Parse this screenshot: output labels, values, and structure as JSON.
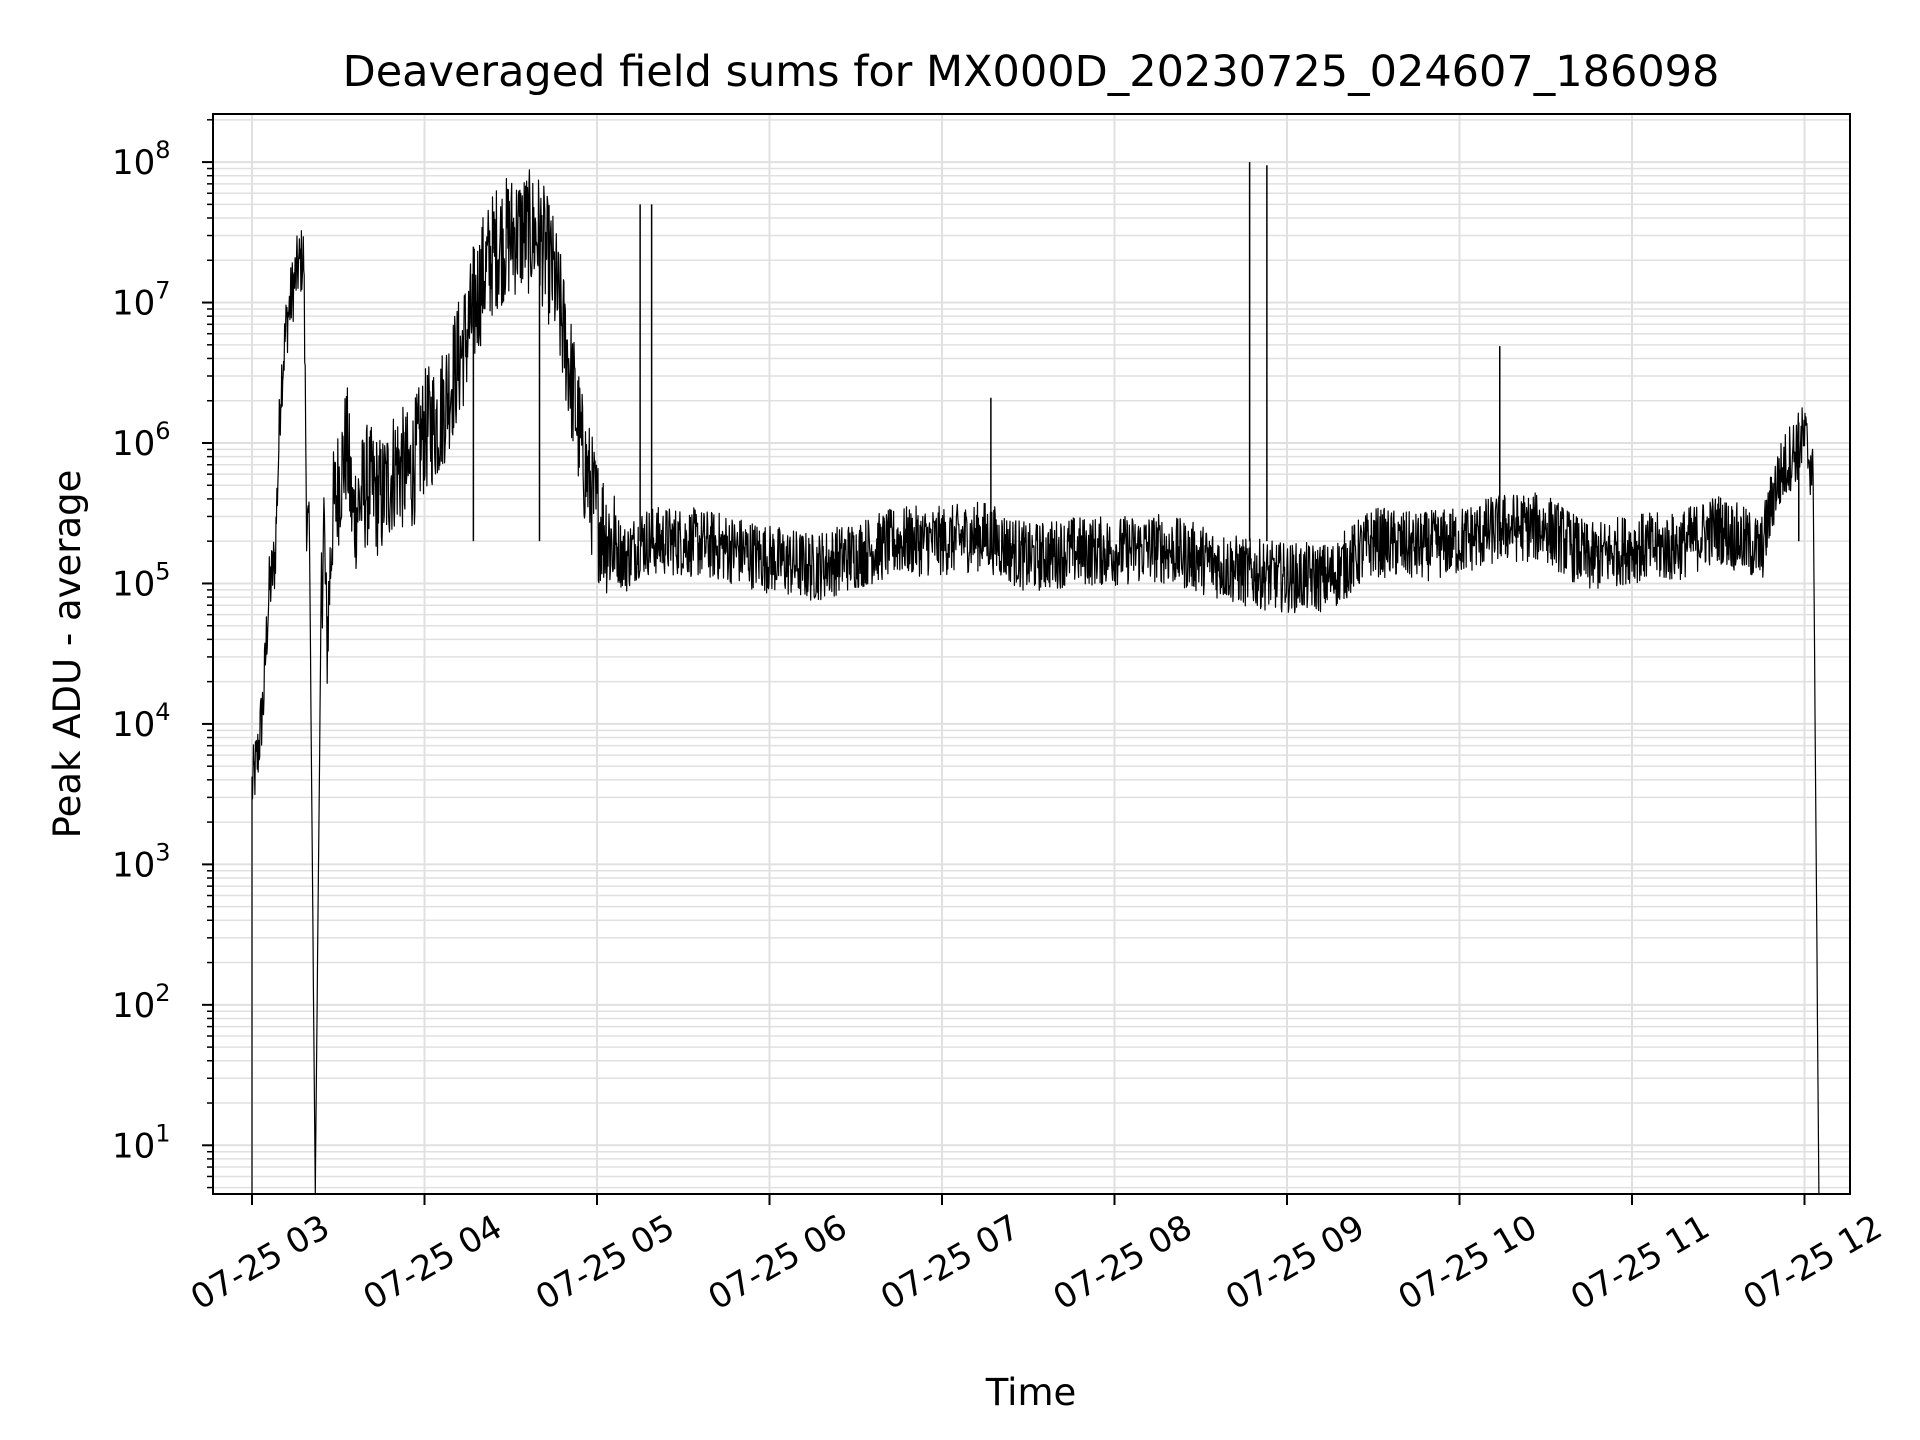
{
  "chart_data": {
    "type": "line",
    "title": "Deaveraged field sums for MX000D_20230725_024607_186098",
    "xlabel": "Time",
    "ylabel": "Peak ADU - average",
    "yscale": "log",
    "ylim": [
      4.5,
      220000000
    ],
    "xlim": [
      "07-25 02:46",
      "07-25 12:15"
    ],
    "grid": true,
    "line_color": "#000000",
    "grid_color": "#e0e0e0",
    "x_ticks": [
      "07-25 03",
      "07-25 04",
      "07-25 05",
      "07-25 06",
      "07-25 07",
      "07-25 08",
      "07-25 09",
      "07-25 10",
      "07-25 11",
      "07-25 12"
    ],
    "y_ticks": [
      {
        "base": "10",
        "exp": "1",
        "value": 10
      },
      {
        "base": "10",
        "exp": "2",
        "value": 100
      },
      {
        "base": "10",
        "exp": "3",
        "value": 1000
      },
      {
        "base": "10",
        "exp": "4",
        "value": 10000
      },
      {
        "base": "10",
        "exp": "5",
        "value": 100000
      },
      {
        "base": "10",
        "exp": "6",
        "value": 1000000
      },
      {
        "base": "10",
        "exp": "7",
        "value": 10000000
      },
      {
        "base": "10",
        "exp": "8",
        "value": 100000000
      }
    ],
    "series": [
      {
        "values": [
          [
            "07-25 03:00",
            4.5
          ],
          [
            "07-25 03:00",
            3500
          ],
          [
            "07-25 03:02",
            6000
          ],
          [
            "07-25 03:04",
            15000
          ],
          [
            "07-25 03:05",
            40000
          ],
          [
            "07-25 03:06",
            90000
          ],
          [
            "07-25 03:08",
            150000
          ],
          [
            "07-25 03:09",
            600000
          ],
          [
            "07-25 03:10",
            2500000
          ],
          [
            "07-25 03:12",
            7000000
          ],
          [
            "07-25 03:14",
            12000000
          ],
          [
            "07-25 03:16",
            18000000
          ],
          [
            "07-25 03:18",
            21000000
          ],
          [
            "07-25 03:19",
            300000
          ],
          [
            "07-25 03:20",
            200000
          ],
          [
            "07-25 03:22",
            4.5
          ],
          [
            "07-25 03:24",
            60000
          ],
          [
            "07-25 03:25",
            300000
          ],
          [
            "07-25 03:26",
            35000
          ],
          [
            "07-25 03:28",
            300000
          ],
          [
            "07-25 03:30",
            500000
          ],
          [
            "07-25 03:33",
            1000000
          ],
          [
            "07-25 03:35",
            300000
          ],
          [
            "07-25 03:40",
            500000
          ],
          [
            "07-25 03:45",
            400000
          ],
          [
            "07-25 03:50",
            700000
          ],
          [
            "07-25 03:55",
            600000
          ],
          [
            "07-25 04:00",
            1200000
          ],
          [
            "07-25 04:05",
            1500000
          ],
          [
            "07-25 04:10",
            3000000
          ],
          [
            "07-25 04:15",
            6000000
          ],
          [
            "07-25 04:20",
            15000000
          ],
          [
            "07-25 04:25",
            25000000
          ],
          [
            "07-25 04:30",
            30000000
          ],
          [
            "07-25 04:35",
            32000000
          ],
          [
            "07-25 04:40",
            30000000
          ],
          [
            "07-25 04:45",
            15000000
          ],
          [
            "07-25 04:50",
            4000000
          ],
          [
            "07-25 04:55",
            800000
          ],
          [
            "07-25 05:00",
            300000
          ],
          [
            "07-25 05:05",
            200000
          ],
          [
            "07-25 05:10",
            150000
          ],
          [
            "07-25 05:15",
            200000
          ],
          [
            "07-25 05:30",
            200000
          ],
          [
            "07-25 05:45",
            180000
          ],
          [
            "07-25 06:00",
            150000
          ],
          [
            "07-25 06:15",
            130000
          ],
          [
            "07-25 06:30",
            160000
          ],
          [
            "07-25 06:45",
            200000
          ],
          [
            "07-25 07:00",
            200000
          ],
          [
            "07-25 07:15",
            220000
          ],
          [
            "07-25 07:30",
            150000
          ],
          [
            "07-25 07:45",
            170000
          ],
          [
            "07-25 08:00",
            170000
          ],
          [
            "07-25 08:15",
            180000
          ],
          [
            "07-25 08:30",
            150000
          ],
          [
            "07-25 08:45",
            120000
          ],
          [
            "07-25 09:00",
            110000
          ],
          [
            "07-25 09:15",
            110000
          ],
          [
            "07-25 09:30",
            200000
          ],
          [
            "07-25 09:45",
            180000
          ],
          [
            "07-25 10:00",
            200000
          ],
          [
            "07-25 10:15",
            250000
          ],
          [
            "07-25 10:30",
            250000
          ],
          [
            "07-25 10:45",
            150000
          ],
          [
            "07-25 11:00",
            180000
          ],
          [
            "07-25 11:15",
            180000
          ],
          [
            "07-25 11:30",
            250000
          ],
          [
            "07-25 11:45",
            170000
          ],
          [
            "07-25 11:50",
            500000
          ],
          [
            "07-25 11:55",
            800000
          ],
          [
            "07-25 12:00",
            1100000
          ],
          [
            "07-25 12:03",
            600000
          ],
          [
            "07-25 12:05",
            4.5
          ]
        ]
      }
    ],
    "spikes": [
      [
        "07-25 04:17",
        25000000
      ],
      [
        "07-25 04:40",
        25000000
      ],
      [
        "07-25 05:15",
        50000000
      ],
      [
        "07-25 05:19",
        50000000
      ],
      [
        "07-25 07:17",
        2100000
      ],
      [
        "07-25 08:47",
        100000000
      ],
      [
        "07-25 08:53",
        95000000
      ],
      [
        "07-25 10:14",
        4900000
      ],
      [
        "07-25 11:58",
        1400000
      ]
    ]
  }
}
